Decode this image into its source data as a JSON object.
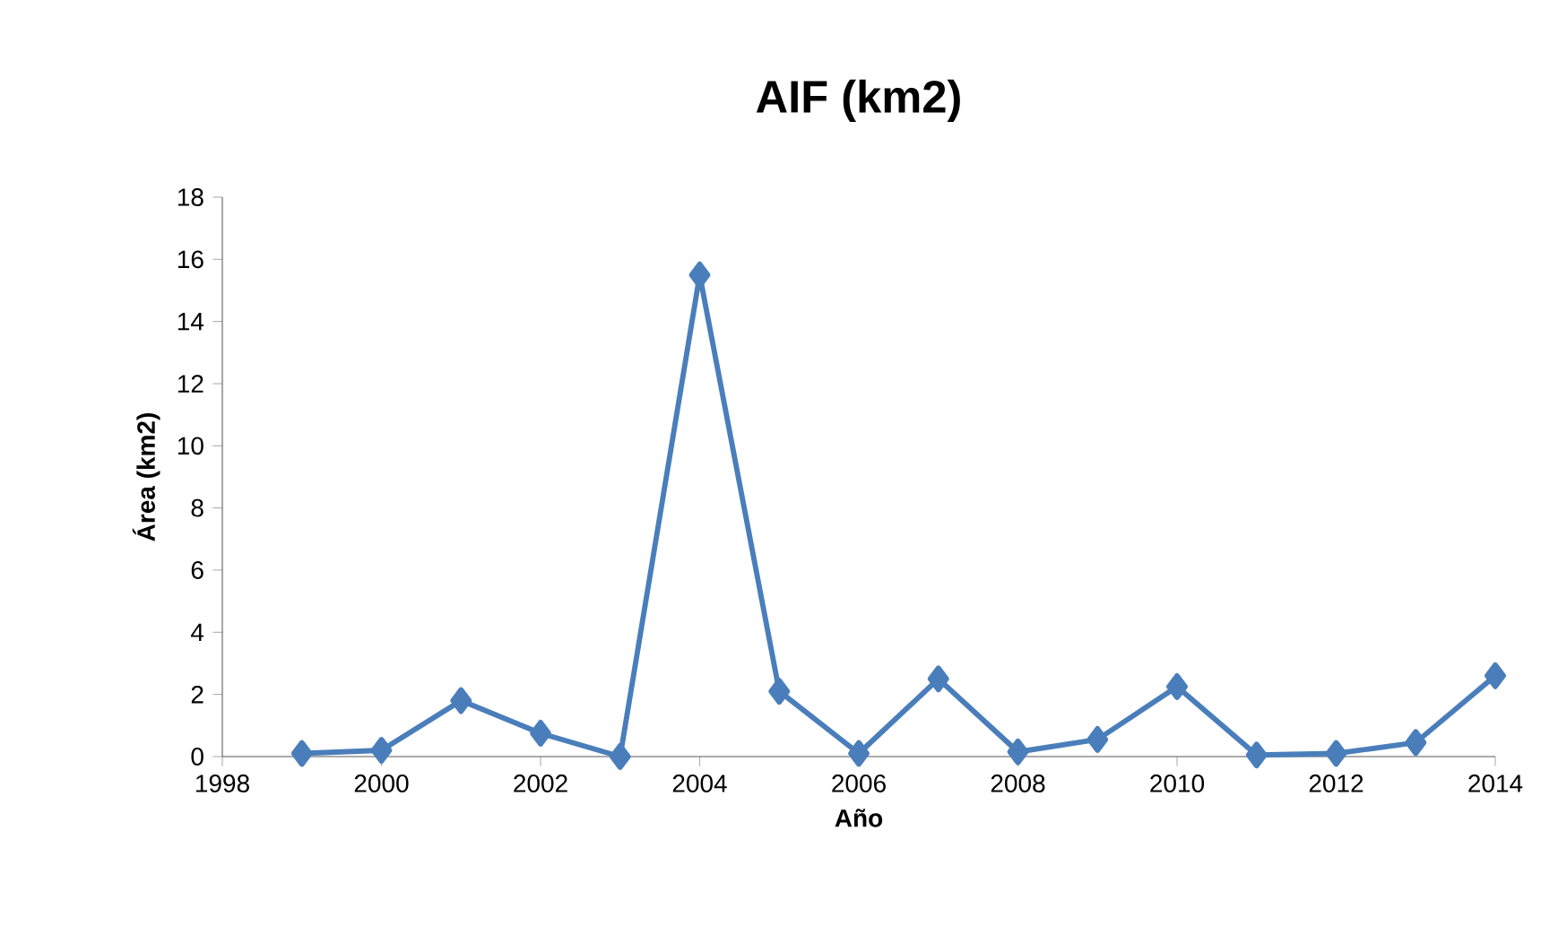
{
  "chart_data": {
    "type": "line",
    "title": "AIF (km2)",
    "xlabel": "Año",
    "ylabel": "Área (km2)",
    "x": [
      1999,
      2000,
      2001,
      2002,
      2003,
      2004,
      2005,
      2006,
      2007,
      2008,
      2009,
      2010,
      2011,
      2012,
      2013,
      2014
    ],
    "series": [
      {
        "color": "#4a7ebb",
        "values": [
          0.1,
          0.2,
          1.8,
          0.75,
          0.0,
          15.5,
          2.1,
          0.1,
          2.5,
          0.15,
          0.55,
          2.25,
          0.05,
          0.1,
          0.45,
          2.6
        ]
      }
    ],
    "xlim": [
      1998,
      2014
    ],
    "xticks": [
      1998,
      2000,
      2002,
      2004,
      2006,
      2008,
      2010,
      2012,
      2014
    ],
    "ylim": [
      0,
      18
    ],
    "yticks": [
      0,
      2,
      4,
      6,
      8,
      10,
      12,
      14,
      16,
      18
    ],
    "grid": false,
    "marker": "diamond",
    "line_style": "solid"
  }
}
